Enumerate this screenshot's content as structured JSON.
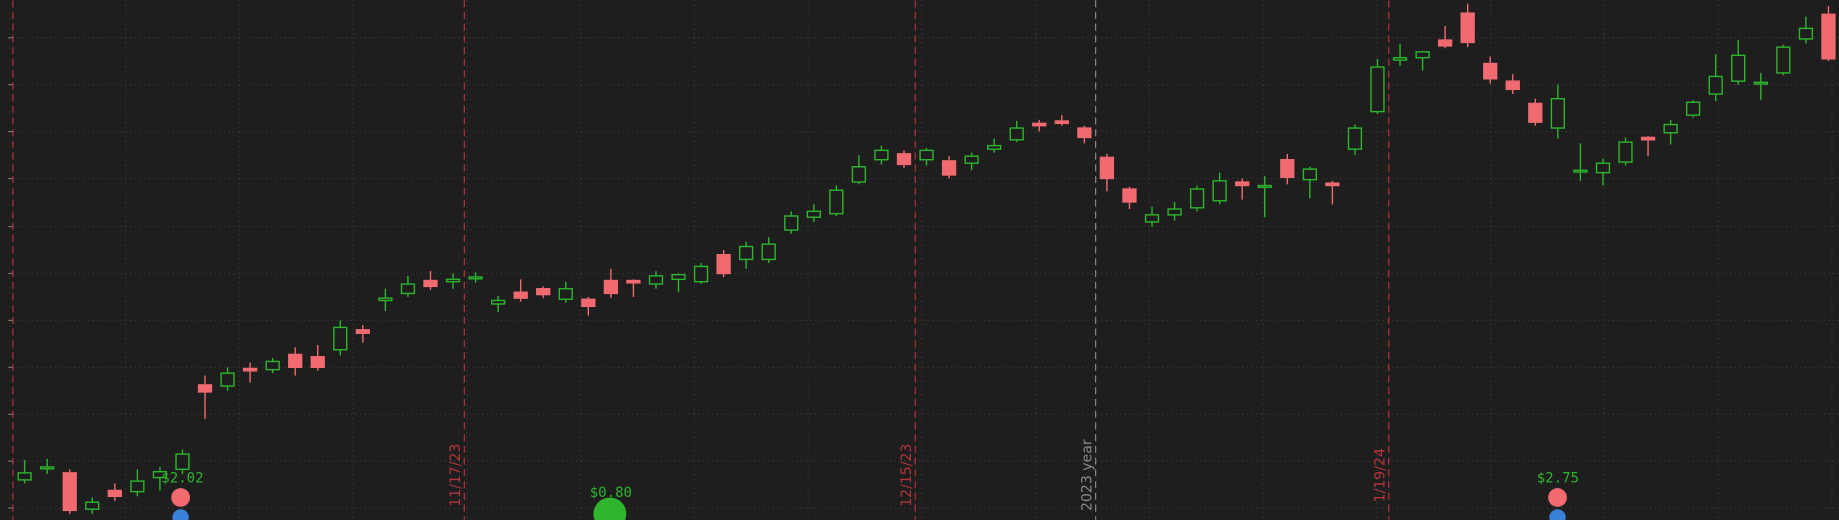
{
  "chart_data": {
    "type": "candlestick",
    "up_color": "#2db52d",
    "down_color": "#f06a70",
    "ylim": [
      0,
      443
    ],
    "yticks": [
      10,
      50,
      90,
      130,
      170,
      210,
      250,
      291,
      331,
      371,
      411
    ],
    "grid": true,
    "categories": [
      null,
      null,
      null,
      null,
      null,
      null,
      null,
      null,
      null,
      null,
      null,
      null,
      null,
      null,
      null,
      null,
      null,
      null,
      null,
      null,
      "11/17/23",
      null,
      null,
      null,
      null,
      null,
      null,
      null,
      null,
      null,
      null,
      null,
      null,
      null,
      null,
      null,
      null,
      null,
      null,
      null,
      "12/15/23",
      null,
      null,
      null,
      null,
      null,
      null,
      null,
      "2023 year",
      null,
      null,
      null,
      null,
      null,
      null,
      null,
      null,
      null,
      null,
      null,
      null,
      "1/19/24",
      null,
      null,
      null,
      null,
      null,
      null,
      null,
      null,
      null,
      null,
      null,
      null,
      null,
      null,
      null,
      null,
      null,
      null,
      null
    ],
    "category_colors": [
      null,
      null,
      null,
      null,
      null,
      null,
      null,
      null,
      null,
      null,
      null,
      null,
      null,
      null,
      null,
      null,
      null,
      null,
      null,
      null,
      "#b5343b",
      null,
      null,
      null,
      null,
      null,
      null,
      null,
      null,
      null,
      null,
      null,
      null,
      null,
      null,
      null,
      null,
      null,
      null,
      null,
      "#b5343b",
      null,
      null,
      null,
      null,
      null,
      null,
      null,
      "#8a8a8a",
      null,
      null,
      null,
      null,
      null,
      null,
      null,
      null,
      null,
      null,
      null,
      null,
      "#b5343b",
      null,
      null,
      null,
      null,
      null,
      null,
      null,
      null,
      null,
      null,
      null,
      null,
      null,
      null,
      null,
      null,
      null,
      null,
      null
    ],
    "annotations": [
      null,
      null,
      null,
      null,
      null,
      null,
      null,
      "$2.02",
      null,
      null,
      null,
      null,
      null,
      null,
      null,
      null,
      null,
      null,
      null,
      null,
      null,
      null,
      null,
      null,
      null,
      null,
      "$0.80",
      null,
      null,
      null,
      null,
      null,
      null,
      null,
      null,
      null,
      null,
      null,
      null,
      null,
      null,
      null,
      null,
      null,
      null,
      null,
      null,
      null,
      null,
      null,
      null,
      null,
      null,
      null,
      null,
      null,
      null,
      null,
      null,
      null,
      null,
      null,
      null,
      null,
      null,
      null,
      null,
      null,
      "$2.75",
      null,
      null,
      null,
      null,
      null,
      null,
      null,
      null,
      null,
      null,
      null,
      null,
      null
    ],
    "open": [
      34,
      44,
      40,
      9,
      25,
      24,
      36,
      43,
      115,
      114,
      129,
      128,
      141,
      139,
      145,
      162,
      187,
      193,
      204,
      203,
      206,
      184,
      194,
      197,
      188,
      188,
      204,
      204,
      201,
      205,
      203,
      226,
      222,
      222,
      247,
      258,
      261,
      288,
      307,
      312,
      307,
      306,
      304,
      316,
      324,
      338,
      340,
      334,
      309,
      282,
      254,
      260,
      266,
      272,
      288,
      284,
      307,
      290,
      287,
      316,
      348,
      392,
      394,
      409,
      432,
      389,
      374,
      355,
      334,
      297,
      296,
      305,
      326,
      330,
      345,
      363,
      374,
      372,
      381,
      410,
      431
    ],
    "high": [
      51,
      52,
      43,
      19,
      31,
      43,
      45,
      60,
      123,
      130,
      134,
      138,
      147,
      149,
      170,
      166,
      197,
      208,
      212,
      210,
      211,
      191,
      205,
      199,
      203,
      190,
      214,
      205,
      212,
      210,
      219,
      230,
      237,
      241,
      263,
      269,
      285,
      311,
      319,
      315,
      317,
      310,
      313,
      325,
      340,
      341,
      345,
      336,
      312,
      284,
      267,
      271,
      285,
      296,
      291,
      293,
      312,
      301,
      289,
      337,
      393,
      406,
      399,
      421,
      440,
      395,
      380,
      359,
      371,
      321,
      308,
      326,
      327,
      341,
      358,
      397,
      409,
      381,
      405,
      429,
      438
    ],
    "low": [
      31,
      39,
      5,
      5,
      16,
      20,
      25,
      39,
      86,
      110,
      117,
      125,
      123,
      127,
      140,
      151,
      178,
      190,
      196,
      197,
      202,
      177,
      186,
      189,
      185,
      174,
      189,
      190,
      197,
      194,
      201,
      207,
      214,
      219,
      244,
      254,
      259,
      286,
      303,
      300,
      302,
      291,
      298,
      313,
      322,
      331,
      336,
      321,
      280,
      265,
      250,
      255,
      263,
      269,
      273,
      258,
      286,
      274,
      269,
      311,
      346,
      387,
      383,
      402,
      403,
      372,
      363,
      336,
      325,
      289,
      285,
      302,
      310,
      320,
      343,
      357,
      371,
      358,
      379,
      406,
      391
    ],
    "close": [
      40,
      45,
      8,
      15,
      20,
      33,
      41,
      56,
      109,
      125,
      127,
      135,
      130,
      130,
      164,
      159,
      189,
      201,
      199,
      205,
      207,
      187,
      189,
      192,
      197,
      182,
      193,
      202,
      208,
      209,
      216,
      210,
      233,
      235,
      259,
      263,
      281,
      301,
      315,
      303,
      315,
      294,
      310,
      319,
      334,
      336,
      338,
      326,
      291,
      271,
      260,
      265,
      282,
      289,
      285,
      285,
      292,
      299,
      285,
      334,
      386,
      394,
      399,
      404,
      407,
      376,
      367,
      339,
      359,
      298,
      304,
      322,
      324,
      337,
      356,
      378,
      396,
      373,
      403,
      419,
      393
    ]
  }
}
